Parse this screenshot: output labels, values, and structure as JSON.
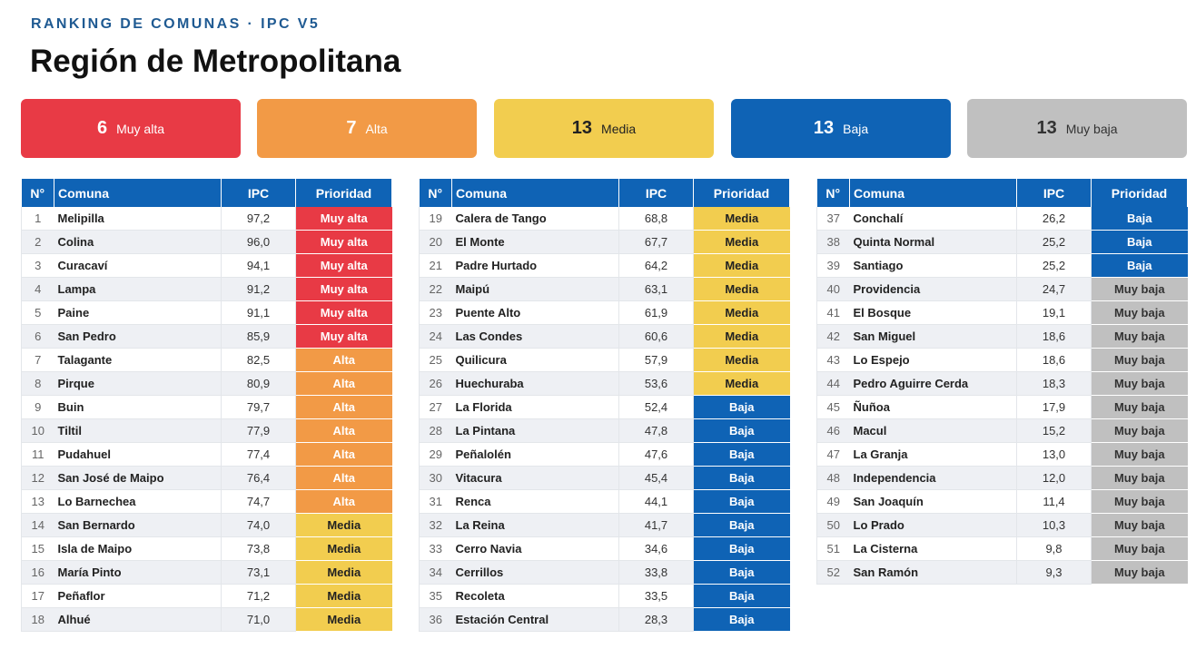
{
  "header": {
    "kicker": "RANKING DE COMUNAS · IPC V5",
    "title": "Región de Metropolitana"
  },
  "summary": [
    {
      "count": "6",
      "label": "Muy alta"
    },
    {
      "count": "7",
      "label": "Alta"
    },
    {
      "count": "13",
      "label": "Media"
    },
    {
      "count": "13",
      "label": "Baja"
    },
    {
      "count": "13",
      "label": "Muy baja"
    }
  ],
  "columns": {
    "n": "N°",
    "comuna": "Comuna",
    "ipc": "IPC",
    "prioridad": "Prioridad"
  },
  "colors": {
    "muy_alta": "#e83a45",
    "alta": "#f29a46",
    "media": "#f2cd4f",
    "baja": "#0f63b5",
    "muy_baja": "#c0c0c0"
  },
  "tables": [
    [
      {
        "n": "1",
        "comuna": "Melipilla",
        "ipc": "97,2",
        "prioridad": "Muy alta"
      },
      {
        "n": "2",
        "comuna": "Colina",
        "ipc": "96,0",
        "prioridad": "Muy alta"
      },
      {
        "n": "3",
        "comuna": "Curacaví",
        "ipc": "94,1",
        "prioridad": "Muy alta"
      },
      {
        "n": "4",
        "comuna": "Lampa",
        "ipc": "91,2",
        "prioridad": "Muy alta"
      },
      {
        "n": "5",
        "comuna": "Paine",
        "ipc": "91,1",
        "prioridad": "Muy alta"
      },
      {
        "n": "6",
        "comuna": "San Pedro",
        "ipc": "85,9",
        "prioridad": "Muy alta"
      },
      {
        "n": "7",
        "comuna": "Talagante",
        "ipc": "82,5",
        "prioridad": "Alta"
      },
      {
        "n": "8",
        "comuna": "Pirque",
        "ipc": "80,9",
        "prioridad": "Alta"
      },
      {
        "n": "9",
        "comuna": "Buin",
        "ipc": "79,7",
        "prioridad": "Alta"
      },
      {
        "n": "10",
        "comuna": "Tiltil",
        "ipc": "77,9",
        "prioridad": "Alta"
      },
      {
        "n": "11",
        "comuna": "Pudahuel",
        "ipc": "77,4",
        "prioridad": "Alta"
      },
      {
        "n": "12",
        "comuna": "San José de Maipo",
        "ipc": "76,4",
        "prioridad": "Alta"
      },
      {
        "n": "13",
        "comuna": "Lo Barnechea",
        "ipc": "74,7",
        "prioridad": "Alta"
      },
      {
        "n": "14",
        "comuna": "San Bernardo",
        "ipc": "74,0",
        "prioridad": "Media"
      },
      {
        "n": "15",
        "comuna": "Isla de Maipo",
        "ipc": "73,8",
        "prioridad": "Media"
      },
      {
        "n": "16",
        "comuna": "María Pinto",
        "ipc": "73,1",
        "prioridad": "Media"
      },
      {
        "n": "17",
        "comuna": "Peñaflor",
        "ipc": "71,2",
        "prioridad": "Media"
      },
      {
        "n": "18",
        "comuna": "Alhué",
        "ipc": "71,0",
        "prioridad": "Media"
      }
    ],
    [
      {
        "n": "19",
        "comuna": "Calera de Tango",
        "ipc": "68,8",
        "prioridad": "Media"
      },
      {
        "n": "20",
        "comuna": "El Monte",
        "ipc": "67,7",
        "prioridad": "Media"
      },
      {
        "n": "21",
        "comuna": "Padre Hurtado",
        "ipc": "64,2",
        "prioridad": "Media"
      },
      {
        "n": "22",
        "comuna": "Maipú",
        "ipc": "63,1",
        "prioridad": "Media"
      },
      {
        "n": "23",
        "comuna": "Puente Alto",
        "ipc": "61,9",
        "prioridad": "Media"
      },
      {
        "n": "24",
        "comuna": "Las Condes",
        "ipc": "60,6",
        "prioridad": "Media"
      },
      {
        "n": "25",
        "comuna": "Quilicura",
        "ipc": "57,9",
        "prioridad": "Media"
      },
      {
        "n": "26",
        "comuna": "Huechuraba",
        "ipc": "53,6",
        "prioridad": "Media"
      },
      {
        "n": "27",
        "comuna": "La Florida",
        "ipc": "52,4",
        "prioridad": "Baja"
      },
      {
        "n": "28",
        "comuna": "La Pintana",
        "ipc": "47,8",
        "prioridad": "Baja"
      },
      {
        "n": "29",
        "comuna": "Peñalolén",
        "ipc": "47,6",
        "prioridad": "Baja"
      },
      {
        "n": "30",
        "comuna": "Vitacura",
        "ipc": "45,4",
        "prioridad": "Baja"
      },
      {
        "n": "31",
        "comuna": "Renca",
        "ipc": "44,1",
        "prioridad": "Baja"
      },
      {
        "n": "32",
        "comuna": "La Reina",
        "ipc": "41,7",
        "prioridad": "Baja"
      },
      {
        "n": "33",
        "comuna": "Cerro Navia",
        "ipc": "34,6",
        "prioridad": "Baja"
      },
      {
        "n": "34",
        "comuna": "Cerrillos",
        "ipc": "33,8",
        "prioridad": "Baja"
      },
      {
        "n": "35",
        "comuna": "Recoleta",
        "ipc": "33,5",
        "prioridad": "Baja"
      },
      {
        "n": "36",
        "comuna": "Estación Central",
        "ipc": "28,3",
        "prioridad": "Baja"
      }
    ],
    [
      {
        "n": "37",
        "comuna": "Conchalí",
        "ipc": "26,2",
        "prioridad": "Baja"
      },
      {
        "n": "38",
        "comuna": "Quinta Normal",
        "ipc": "25,2",
        "prioridad": "Baja"
      },
      {
        "n": "39",
        "comuna": "Santiago",
        "ipc": "25,2",
        "prioridad": "Baja"
      },
      {
        "n": "40",
        "comuna": "Providencia",
        "ipc": "24,7",
        "prioridad": "Muy baja"
      },
      {
        "n": "41",
        "comuna": "El Bosque",
        "ipc": "19,1",
        "prioridad": "Muy baja"
      },
      {
        "n": "42",
        "comuna": "San Miguel",
        "ipc": "18,6",
        "prioridad": "Muy baja"
      },
      {
        "n": "43",
        "comuna": "Lo Espejo",
        "ipc": "18,6",
        "prioridad": "Muy baja"
      },
      {
        "n": "44",
        "comuna": "Pedro Aguirre Cerda",
        "ipc": "18,3",
        "prioridad": "Muy baja"
      },
      {
        "n": "45",
        "comuna": "Ñuñoa",
        "ipc": "17,9",
        "prioridad": "Muy baja"
      },
      {
        "n": "46",
        "comuna": "Macul",
        "ipc": "15,2",
        "prioridad": "Muy baja"
      },
      {
        "n": "47",
        "comuna": "La Granja",
        "ipc": "13,0",
        "prioridad": "Muy baja"
      },
      {
        "n": "48",
        "comuna": "Independencia",
        "ipc": "12,0",
        "prioridad": "Muy baja"
      },
      {
        "n": "49",
        "comuna": "San Joaquín",
        "ipc": "11,4",
        "prioridad": "Muy baja"
      },
      {
        "n": "50",
        "comuna": "Lo Prado",
        "ipc": "10,3",
        "prioridad": "Muy baja"
      },
      {
        "n": "51",
        "comuna": "La Cisterna",
        "ipc": "9,8",
        "prioridad": "Muy baja"
      },
      {
        "n": "52",
        "comuna": "San Ramón",
        "ipc": "9,3",
        "prioridad": "Muy baja"
      }
    ]
  ]
}
